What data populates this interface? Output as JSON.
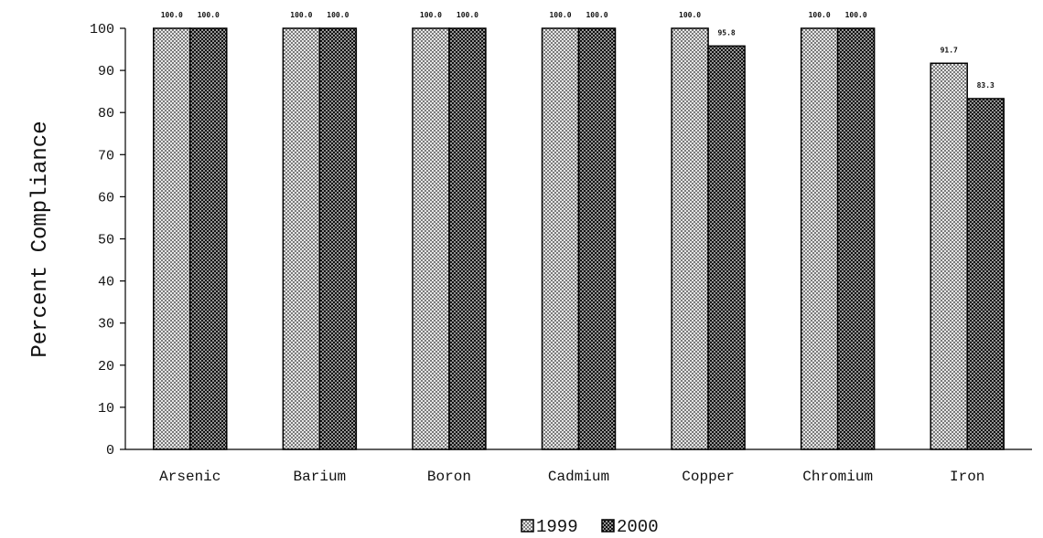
{
  "chart_data": {
    "type": "bar",
    "title": "",
    "xlabel": "",
    "ylabel": "Percent Compliance",
    "ylim": [
      0,
      100
    ],
    "yticks": [
      "0",
      "10",
      "20",
      "30",
      "40",
      "50",
      "60",
      "70",
      "80",
      "90",
      "100"
    ],
    "categories": [
      "Arsenic",
      "Barium",
      "Boron",
      "Cadmium",
      "Copper",
      "Chromium",
      "Iron"
    ],
    "series": [
      {
        "name": "1999",
        "values": [
          100.0,
          100.0,
          100.0,
          100.0,
          100.0,
          100.0,
          91.7
        ],
        "labels": [
          "100.0",
          "100.0",
          "100.0",
          "100.0",
          "100.0",
          "100.0",
          "91.7"
        ],
        "pattern": "light-dots"
      },
      {
        "name": "2000",
        "values": [
          100.0,
          100.0,
          100.0,
          100.0,
          95.8,
          100.0,
          83.3
        ],
        "labels": [
          "100.0",
          "100.0",
          "100.0",
          "100.0",
          "95.8",
          "100.0",
          "83.3"
        ],
        "pattern": "dark-dots"
      }
    ],
    "grid": false,
    "legend_position": "bottom-center"
  }
}
